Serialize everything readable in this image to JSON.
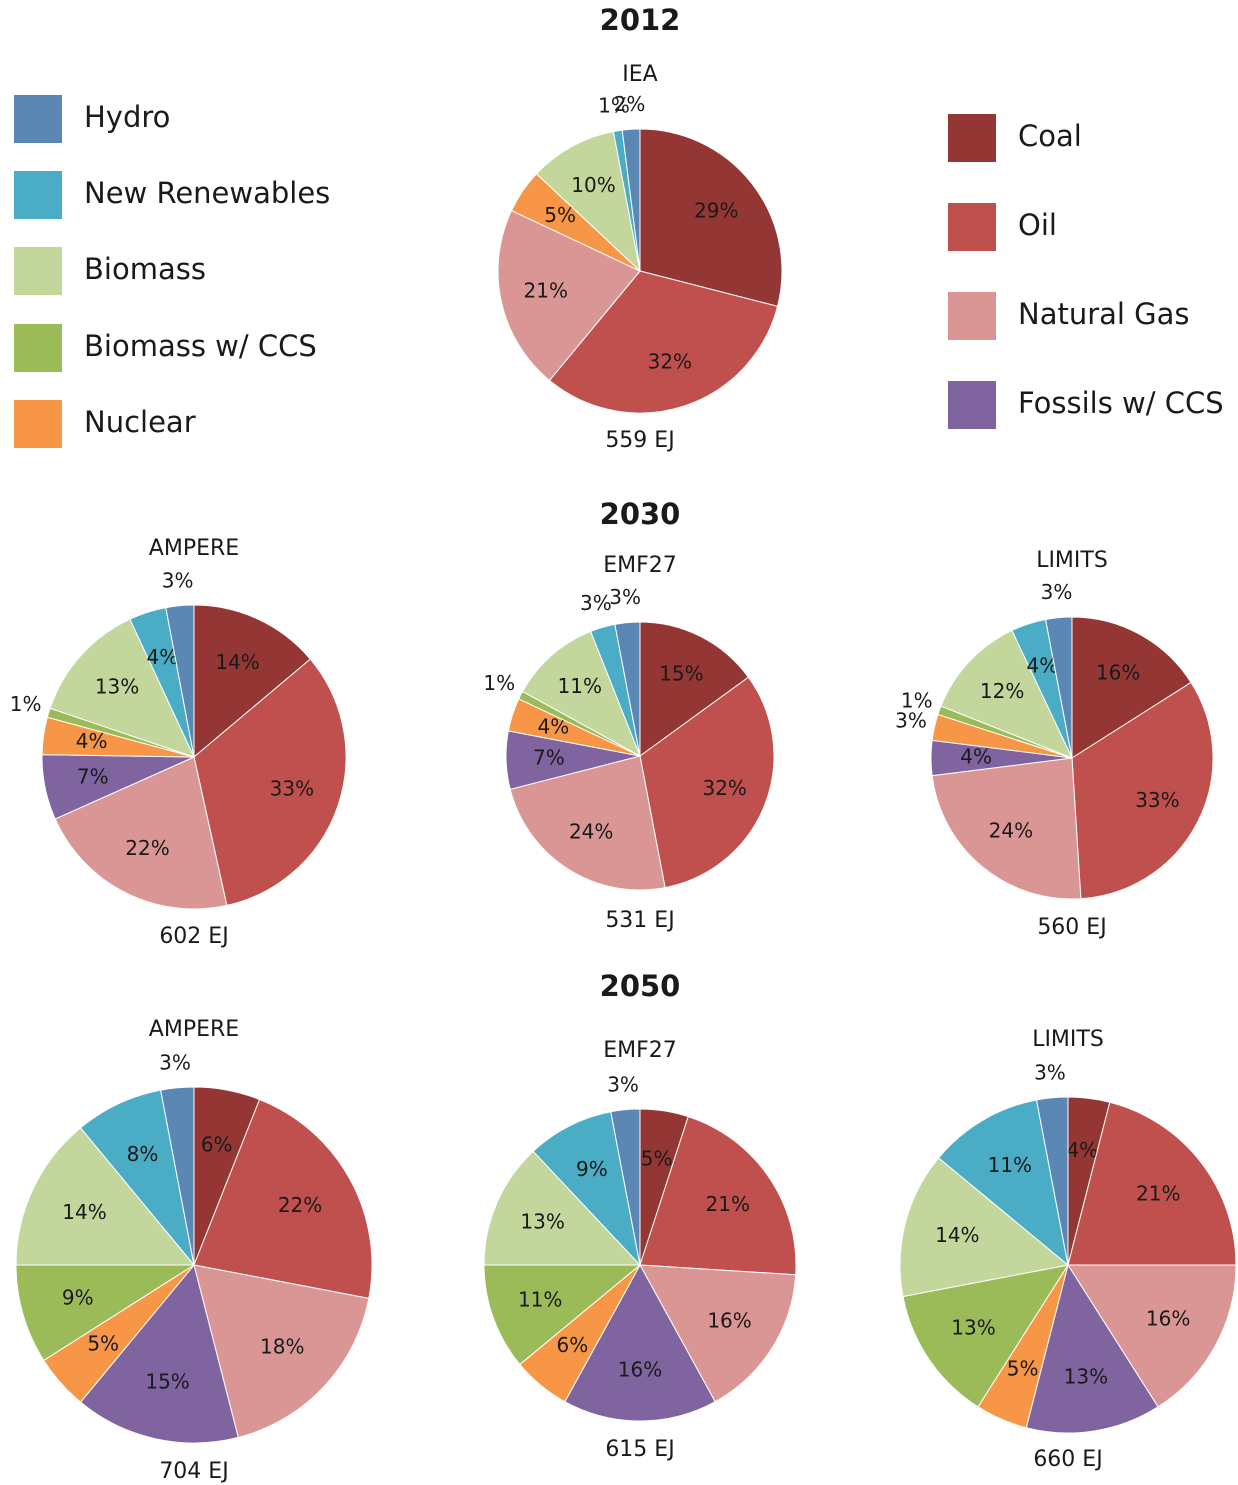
{
  "headings": [
    "2012",
    "2030",
    "2050"
  ],
  "legend": [
    {
      "name": "Hydro",
      "color": "#5b87b5"
    },
    {
      "name": "New Renewables",
      "color": "#4bacc6"
    },
    {
      "name": "Biomass",
      "color": "#c3d69b"
    },
    {
      "name": "Biomass w/ CCS",
      "color": "#9bbb59"
    },
    {
      "name": "Nuclear",
      "color": "#f79646"
    },
    {
      "name": "Coal",
      "color": "#943634"
    },
    {
      "name": "Oil",
      "color": "#c0504d"
    },
    {
      "name": "Natural Gas",
      "color": "#d99694"
    },
    {
      "name": "Fossils w/ CCS",
      "color": "#7f64a0"
    }
  ],
  "chart_data": [
    {
      "type": "pie",
      "title": "IEA",
      "caption": "559 EJ",
      "categories": [
        "Coal",
        "Oil",
        "Natural Gas",
        "Nuclear",
        "Biomass",
        "New Renewables",
        "Hydro"
      ],
      "values": [
        29,
        32,
        21,
        5,
        10,
        1,
        2
      ],
      "value_labels": [
        "29%",
        "32%",
        "21%",
        "5%",
        "10%",
        "1%",
        "2%"
      ]
    },
    {
      "type": "pie",
      "title": "AMPERE",
      "caption": "602 EJ",
      "categories": [
        "Coal",
        "Oil",
        "Natural Gas",
        "Fossils w/ CCS",
        "Nuclear",
        "Biomass w/ CCS",
        "Biomass",
        "New Renewables",
        "Hydro"
      ],
      "values": [
        14,
        33,
        22,
        7,
        4,
        1,
        13,
        4,
        3
      ],
      "value_labels": [
        "14%",
        "33%",
        "22%",
        "7%",
        "4%",
        "1%",
        "13%",
        "4%",
        "3%"
      ]
    },
    {
      "type": "pie",
      "title": "EMF27",
      "caption": "531 EJ",
      "categories": [
        "Coal",
        "Oil",
        "Natural Gas",
        "Fossils w/ CCS",
        "Nuclear",
        "Biomass w/ CCS",
        "Biomass",
        "New Renewables",
        "Hydro"
      ],
      "values": [
        15,
        32,
        24,
        7,
        4,
        1,
        11,
        3,
        3
      ],
      "value_labels": [
        "15%",
        "32%",
        "24%",
        "7%",
        "4%",
        "1%",
        "11%",
        "3%",
        "3%"
      ]
    },
    {
      "type": "pie",
      "title": "LIMITS",
      "caption": "560 EJ",
      "categories": [
        "Coal",
        "Oil",
        "Natural Gas",
        "Fossils w/ CCS",
        "Nuclear",
        "Biomass w/ CCS",
        "Biomass",
        "New Renewables",
        "Hydro"
      ],
      "values": [
        16,
        33,
        24,
        4,
        3,
        1,
        12,
        4,
        3
      ],
      "value_labels": [
        "16%",
        "33%",
        "24%",
        "4%",
        "3%",
        "1%",
        "12%",
        "4%",
        "3%"
      ]
    },
    {
      "type": "pie",
      "title": "AMPERE",
      "caption": "704 EJ",
      "categories": [
        "Coal",
        "Oil",
        "Natural Gas",
        "Fossils w/ CCS",
        "Nuclear",
        "Biomass w/ CCS",
        "Biomass",
        "New Renewables",
        "Hydro"
      ],
      "values": [
        6,
        22,
        18,
        15,
        5,
        9,
        14,
        8,
        3
      ],
      "value_labels": [
        "6%",
        "22%",
        "18%",
        "15%",
        "5%",
        "9%",
        "14%",
        "8%",
        "3%"
      ]
    },
    {
      "type": "pie",
      "title": "EMF27",
      "caption": "615 EJ",
      "categories": [
        "Coal",
        "Oil",
        "Natural Gas",
        "Fossils w/ CCS",
        "Nuclear",
        "Biomass w/ CCS",
        "Biomass",
        "New Renewables",
        "Hydro"
      ],
      "values": [
        5,
        21,
        16,
        16,
        6,
        11,
        13,
        9,
        3
      ],
      "value_labels": [
        "5%",
        "21%",
        "16%",
        "16%",
        "6%",
        "11%",
        "13%",
        "9%",
        "3%"
      ]
    },
    {
      "type": "pie",
      "title": "LIMITS",
      "caption": "660 EJ",
      "categories": [
        "Coal",
        "Oil",
        "Natural Gas",
        "Fossils w/ CCS",
        "Nuclear",
        "Biomass w/ CCS",
        "Biomass",
        "New Renewables",
        "Hydro"
      ],
      "values": [
        4,
        21,
        16,
        13,
        5,
        13,
        14,
        11,
        3
      ],
      "value_labels": [
        "4%",
        "21%",
        "16%",
        "13%",
        "5%",
        "13%",
        "14%",
        "11%",
        "3%"
      ]
    }
  ]
}
